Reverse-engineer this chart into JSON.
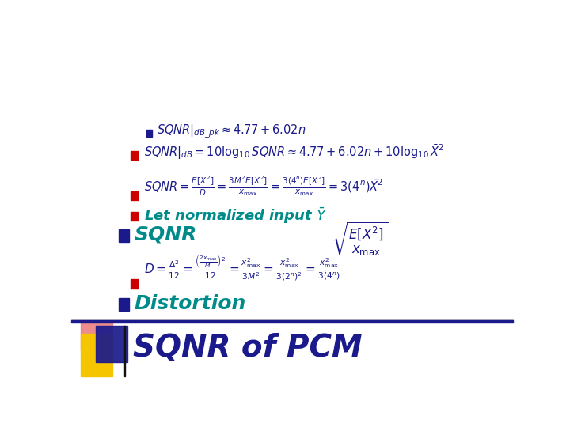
{
  "title": "SQNR of PCM",
  "title_color": "#1a1a8c",
  "title_fontsize": 28,
  "bg_color": "#ffffff",
  "header_bar_color": "#1a1a8c",
  "yellow_color": "#f5c500",
  "pink_color": "#e87070",
  "blue_color": "#1a1a8c",
  "teal_color": "#008b8b",
  "red_color": "#cc0000",
  "formula_color": "#1a1a8c"
}
